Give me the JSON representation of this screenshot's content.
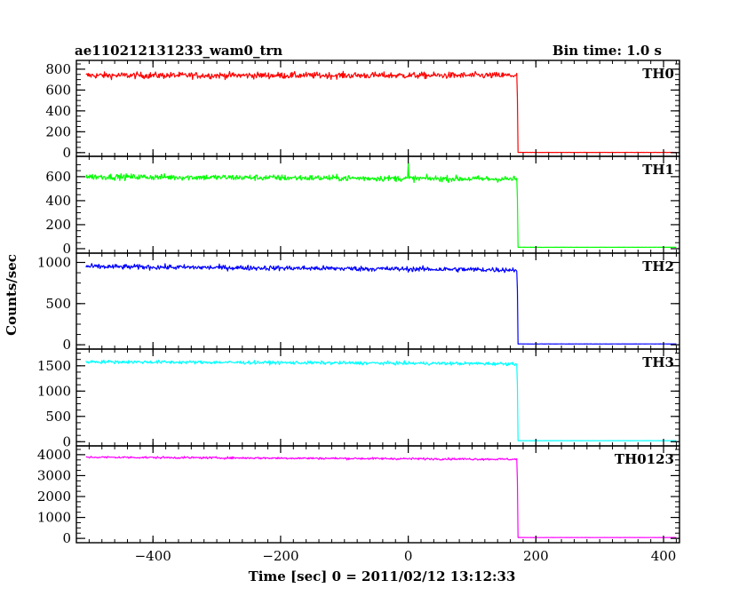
{
  "header": {
    "title": "ae110212131233_wam0_trn",
    "bin_time": "Bin time: 1.0 s"
  },
  "chart_data": {
    "type": "line",
    "xlabel": "Time [sec] 0 = 2011/02/12 13:12:33",
    "ylabel": "Counts/sec",
    "xlim": [
      -520,
      425
    ],
    "x_ticks": [
      -400,
      -200,
      0,
      200,
      400
    ],
    "x_tick_labels": [
      "−400",
      "−200",
      "0",
      "200",
      "400"
    ],
    "x_data_range": [
      -505,
      420
    ],
    "drop_time": 172,
    "grid": false,
    "panels": [
      {
        "name": "TH0",
        "color": "#ff0000",
        "ylim": [
          -10,
          850
        ],
        "yticks": [
          0,
          200,
          400,
          600,
          800
        ],
        "level": 740,
        "noise": 55,
        "post_level": 2,
        "drift": 0,
        "spike": null
      },
      {
        "name": "TH1",
        "color": "#00ff00",
        "ylim": [
          -15,
          740
        ],
        "yticks": [
          0,
          200,
          400,
          600
        ],
        "level": 600,
        "noise": 45,
        "post_level": 12,
        "drift": -20,
        "spike": {
          "t": 0,
          "v": 720
        }
      },
      {
        "name": "TH2",
        "color": "#0000ff",
        "ylim": [
          -20,
          1070
        ],
        "yticks": [
          0,
          500,
          1000
        ],
        "level": 950,
        "noise": 55,
        "post_level": 10,
        "drift": -40,
        "spike": null
      },
      {
        "name": "TH3",
        "color": "#00ffff",
        "ylim": [
          -30,
          1760
        ],
        "yticks": [
          0,
          500,
          1000,
          1500
        ],
        "level": 1580,
        "noise": 60,
        "post_level": 20,
        "drift": -40,
        "spike": null
      },
      {
        "name": "TH0123",
        "color": "#ff00ff",
        "ylim": [
          -80,
          4250
        ],
        "yticks": [
          0,
          1000,
          2000,
          3000,
          4000
        ],
        "level": 3880,
        "noise": 90,
        "post_level": 40,
        "drift": -100,
        "spike": null
      }
    ]
  }
}
